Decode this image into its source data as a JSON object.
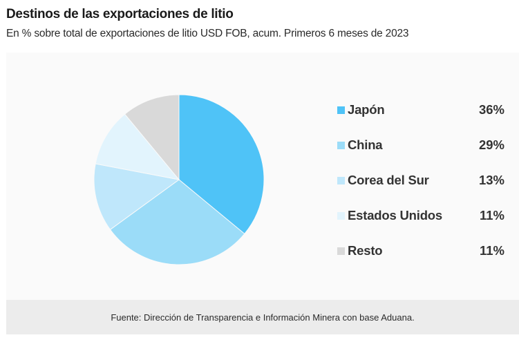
{
  "chart_data": {
    "type": "pie",
    "title": "Destinos de las exportaciones de litio",
    "subtitle": "En % sobre total de exportaciones de litio USD FOB, acum. Primeros 6 meses de  2023",
    "source": "Fuente: Dirección de Transparencia e Información Minera con base Aduana.",
    "legend_position": "right",
    "slices": [
      {
        "label": "Japón",
        "value": 36,
        "value_label": "36%",
        "color": "#4fc3f7"
      },
      {
        "label": "China",
        "value": 29,
        "value_label": "29%",
        "color": "#9bdcf8"
      },
      {
        "label": "Corea del Sur",
        "value": 13,
        "value_label": "13%",
        "color": "#bfe7fb"
      },
      {
        "label": "Estados Unidos",
        "value": 11,
        "value_label": "11%",
        "color": "#e2f4fd"
      },
      {
        "label": "Resto",
        "value": 11,
        "value_label": "11%",
        "color": "#d9d9d9"
      }
    ]
  }
}
